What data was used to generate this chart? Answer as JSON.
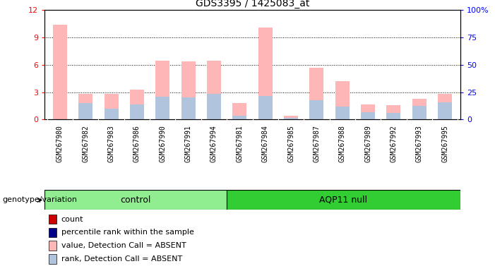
{
  "title": "GDS3395 / 1425083_at",
  "samples": [
    "GSM267980",
    "GSM267982",
    "GSM267983",
    "GSM267986",
    "GSM267990",
    "GSM267991",
    "GSM267994",
    "GSM267981",
    "GSM267984",
    "GSM267985",
    "GSM267987",
    "GSM267988",
    "GSM267989",
    "GSM267992",
    "GSM267993",
    "GSM267995"
  ],
  "n_control": 7,
  "n_aqp11": 9,
  "pink_values": [
    10.4,
    2.8,
    2.8,
    3.3,
    6.5,
    6.4,
    6.5,
    1.8,
    10.1,
    0.4,
    5.7,
    4.2,
    1.7,
    1.6,
    2.3,
    2.8
  ],
  "blue_values": [
    0.0,
    1.8,
    1.2,
    1.7,
    2.5,
    2.4,
    2.8,
    0.4,
    2.6,
    0.2,
    2.1,
    1.4,
    0.8,
    0.7,
    1.5,
    1.9
  ],
  "ylim_left": [
    0,
    12
  ],
  "ylim_right": [
    0,
    100
  ],
  "yticks_left": [
    0,
    3,
    6,
    9,
    12
  ],
  "yticks_right": [
    0,
    25,
    50,
    75,
    100
  ],
  "ytick_right_labels": [
    "0",
    "25",
    "50",
    "75",
    "100%"
  ],
  "control_color": "#90ee90",
  "aqp11_color": "#32cd32",
  "bar_width": 0.55,
  "gray_bg": "#cccccc",
  "legend_items": [
    {
      "color": "#cc0000",
      "label": "count"
    },
    {
      "color": "#00008b",
      "label": "percentile rank within the sample"
    },
    {
      "color": "#ffb6b6",
      "label": "value, Detection Call = ABSENT"
    },
    {
      "color": "#b0c4de",
      "label": "rank, Detection Call = ABSENT"
    }
  ]
}
